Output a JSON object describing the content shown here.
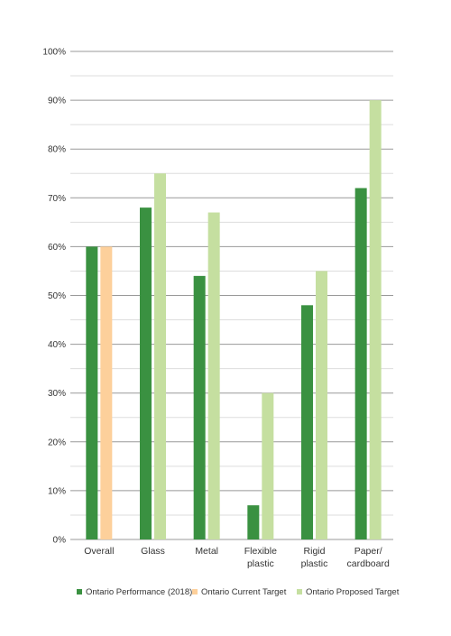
{
  "chart_data": {
    "type": "bar",
    "title": "",
    "xlabel": "",
    "ylabel": "",
    "ylim": [
      0,
      100
    ],
    "y_ticks": [
      0,
      10,
      20,
      30,
      40,
      50,
      60,
      70,
      80,
      90,
      100
    ],
    "y_tick_labels": [
      "0%",
      "10%",
      "20%",
      "30%",
      "40%",
      "50%",
      "60%",
      "70%",
      "80%",
      "90%",
      "100%"
    ],
    "minor_gridlines": true,
    "legend_position": "bottom",
    "categories": [
      [
        "Overall"
      ],
      [
        "Glass"
      ],
      [
        "Metal"
      ],
      [
        "Flexible",
        "plastic"
      ],
      [
        "Rigid",
        "plastic"
      ],
      [
        "Paper/",
        "cardboard"
      ]
    ],
    "series": [
      {
        "name": "Ontario Performance (2018)",
        "color": "#3a9141",
        "values": [
          60,
          68,
          54,
          7,
          48,
          72
        ]
      },
      {
        "name": "Ontario Current Target",
        "color": "#fdd09b",
        "values": [
          60,
          null,
          null,
          null,
          null,
          null
        ]
      },
      {
        "name": "Ontario Proposed Target",
        "color": "#c5dfa0",
        "values": [
          null,
          75,
          67,
          30,
          55,
          90
        ]
      }
    ],
    "grid_color": "#999999",
    "minor_grid_color": "#dddddd"
  }
}
